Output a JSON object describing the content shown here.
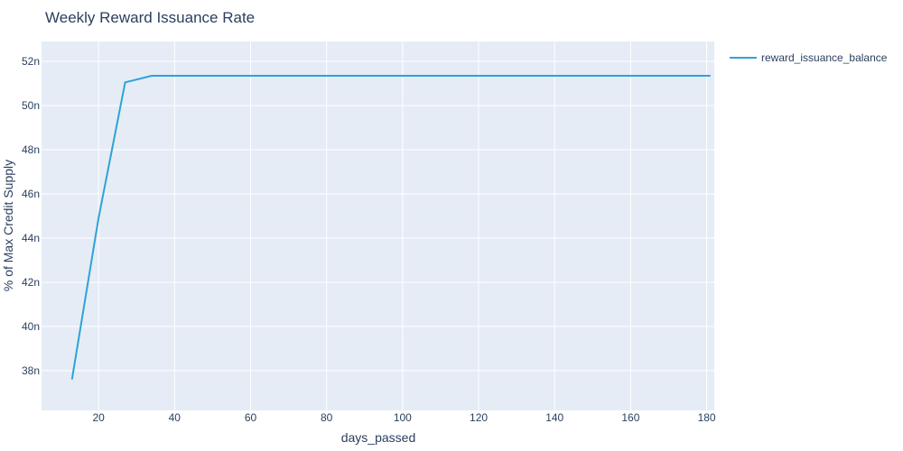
{
  "chart_data": {
    "type": "line",
    "title": "Weekly Reward Issuance Rate",
    "xlabel": "days_passed",
    "ylabel": "% of Max Credit Supply",
    "xlim": [
      5,
      182
    ],
    "ylim": [
      36.2,
      52.9
    ],
    "x_ticks": [
      20,
      40,
      60,
      80,
      100,
      120,
      140,
      160,
      180
    ],
    "y_ticks": [
      38,
      40,
      42,
      44,
      46,
      48,
      50,
      52
    ],
    "y_tick_labels": [
      "38n",
      "40n",
      "42n",
      "44n",
      "46n",
      "48n",
      "50n",
      "52n"
    ],
    "grid": true,
    "legend_position": "top-right",
    "series": [
      {
        "name": "reward_issuance_balance",
        "color": "#2ea2d7",
        "x": [
          13,
          20,
          27,
          34,
          41,
          48,
          55,
          62,
          69,
          76,
          83,
          90,
          97,
          104,
          111,
          118,
          125,
          132,
          139,
          146,
          153,
          160,
          167,
          174,
          181
        ],
        "y": [
          37.6,
          44.9,
          51.05,
          51.35,
          51.35,
          51.35,
          51.35,
          51.35,
          51.35,
          51.35,
          51.35,
          51.35,
          51.35,
          51.35,
          51.35,
          51.35,
          51.35,
          51.35,
          51.35,
          51.35,
          51.35,
          51.35,
          51.35,
          51.35,
          51.35
        ]
      }
    ]
  }
}
